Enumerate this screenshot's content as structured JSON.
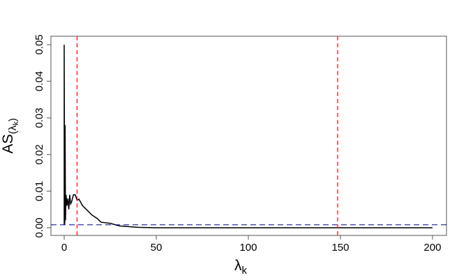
{
  "chart_data": {
    "type": "line",
    "x_label": "λ",
    "x_label_sub": "k",
    "y_label": "AS",
    "y_label_sub": "(λ",
    "y_label_subsub": "k",
    "y_label_close": ")",
    "series": [
      {
        "color": "#000000",
        "x": [
          0,
          0,
          0.3,
          0.5,
          0.7,
          1,
          1.5,
          2,
          2.5,
          3,
          3.5,
          4,
          5,
          6,
          7,
          8,
          10,
          12,
          15,
          18,
          20,
          25,
          30,
          40,
          50,
          60,
          100,
          140,
          200
        ],
        "values": [
          0.0008,
          0.05,
          0.001,
          0.028,
          0.002,
          0.009,
          0.006,
          0.008,
          0.005,
          0.009,
          0.0065,
          0.007,
          0.009,
          0.009,
          0.0075,
          0.0078,
          0.006,
          0.005,
          0.0035,
          0.0025,
          0.0015,
          0.0012,
          0.0005,
          0.0001,
          0.0,
          0.0,
          0.0,
          0.0,
          0.0
        ]
      }
    ],
    "vlines": [
      {
        "value": 7,
        "color": "#ff0000"
      },
      {
        "value": 148.5,
        "color": "#ff0000"
      }
    ],
    "hlines": [
      {
        "value": 0.0008,
        "color": "#00008b"
      }
    ],
    "xlim": [
      -7.2,
      207.6
    ],
    "ylim": [
      -0.0021,
      0.0523
    ],
    "xticks": [
      0,
      50,
      100,
      150,
      200
    ],
    "yticks": [
      {
        "value": 0,
        "label": "0.00"
      },
      0.01,
      0.02,
      0.03,
      0.04,
      0.05
    ]
  }
}
